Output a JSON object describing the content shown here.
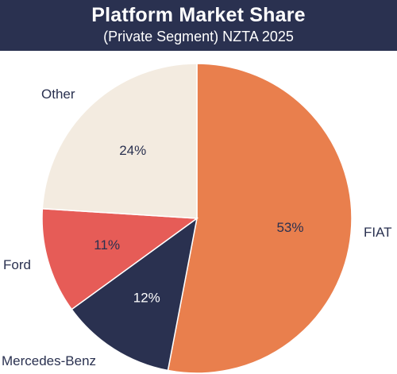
{
  "header": {
    "title": "Platform Market Share",
    "subtitle": "(Private Segment) NZTA 2025"
  },
  "chart_data": {
    "type": "pie",
    "title": "Platform Market Share",
    "subtitle": "(Private Segment) NZTA 2025",
    "slices": [
      {
        "label": "FIAT",
        "value": 53,
        "value_label": "53%",
        "color": "#e97f4d",
        "label_color": "#2a3150"
      },
      {
        "label": "Mercedes-Benz",
        "value": 12,
        "value_label": "12%",
        "color": "#2a3150",
        "label_color": "#ffffff"
      },
      {
        "label": "Ford",
        "value": 11,
        "value_label": "11%",
        "color": "#e65c57",
        "label_color": "#2a3150"
      },
      {
        "label": "Other",
        "value": 24,
        "value_label": "24%",
        "color": "#f3ebe0",
        "label_color": "#2a3150"
      }
    ],
    "start_angle": "12 o'clock",
    "direction": "clockwise",
    "legend": "none"
  }
}
